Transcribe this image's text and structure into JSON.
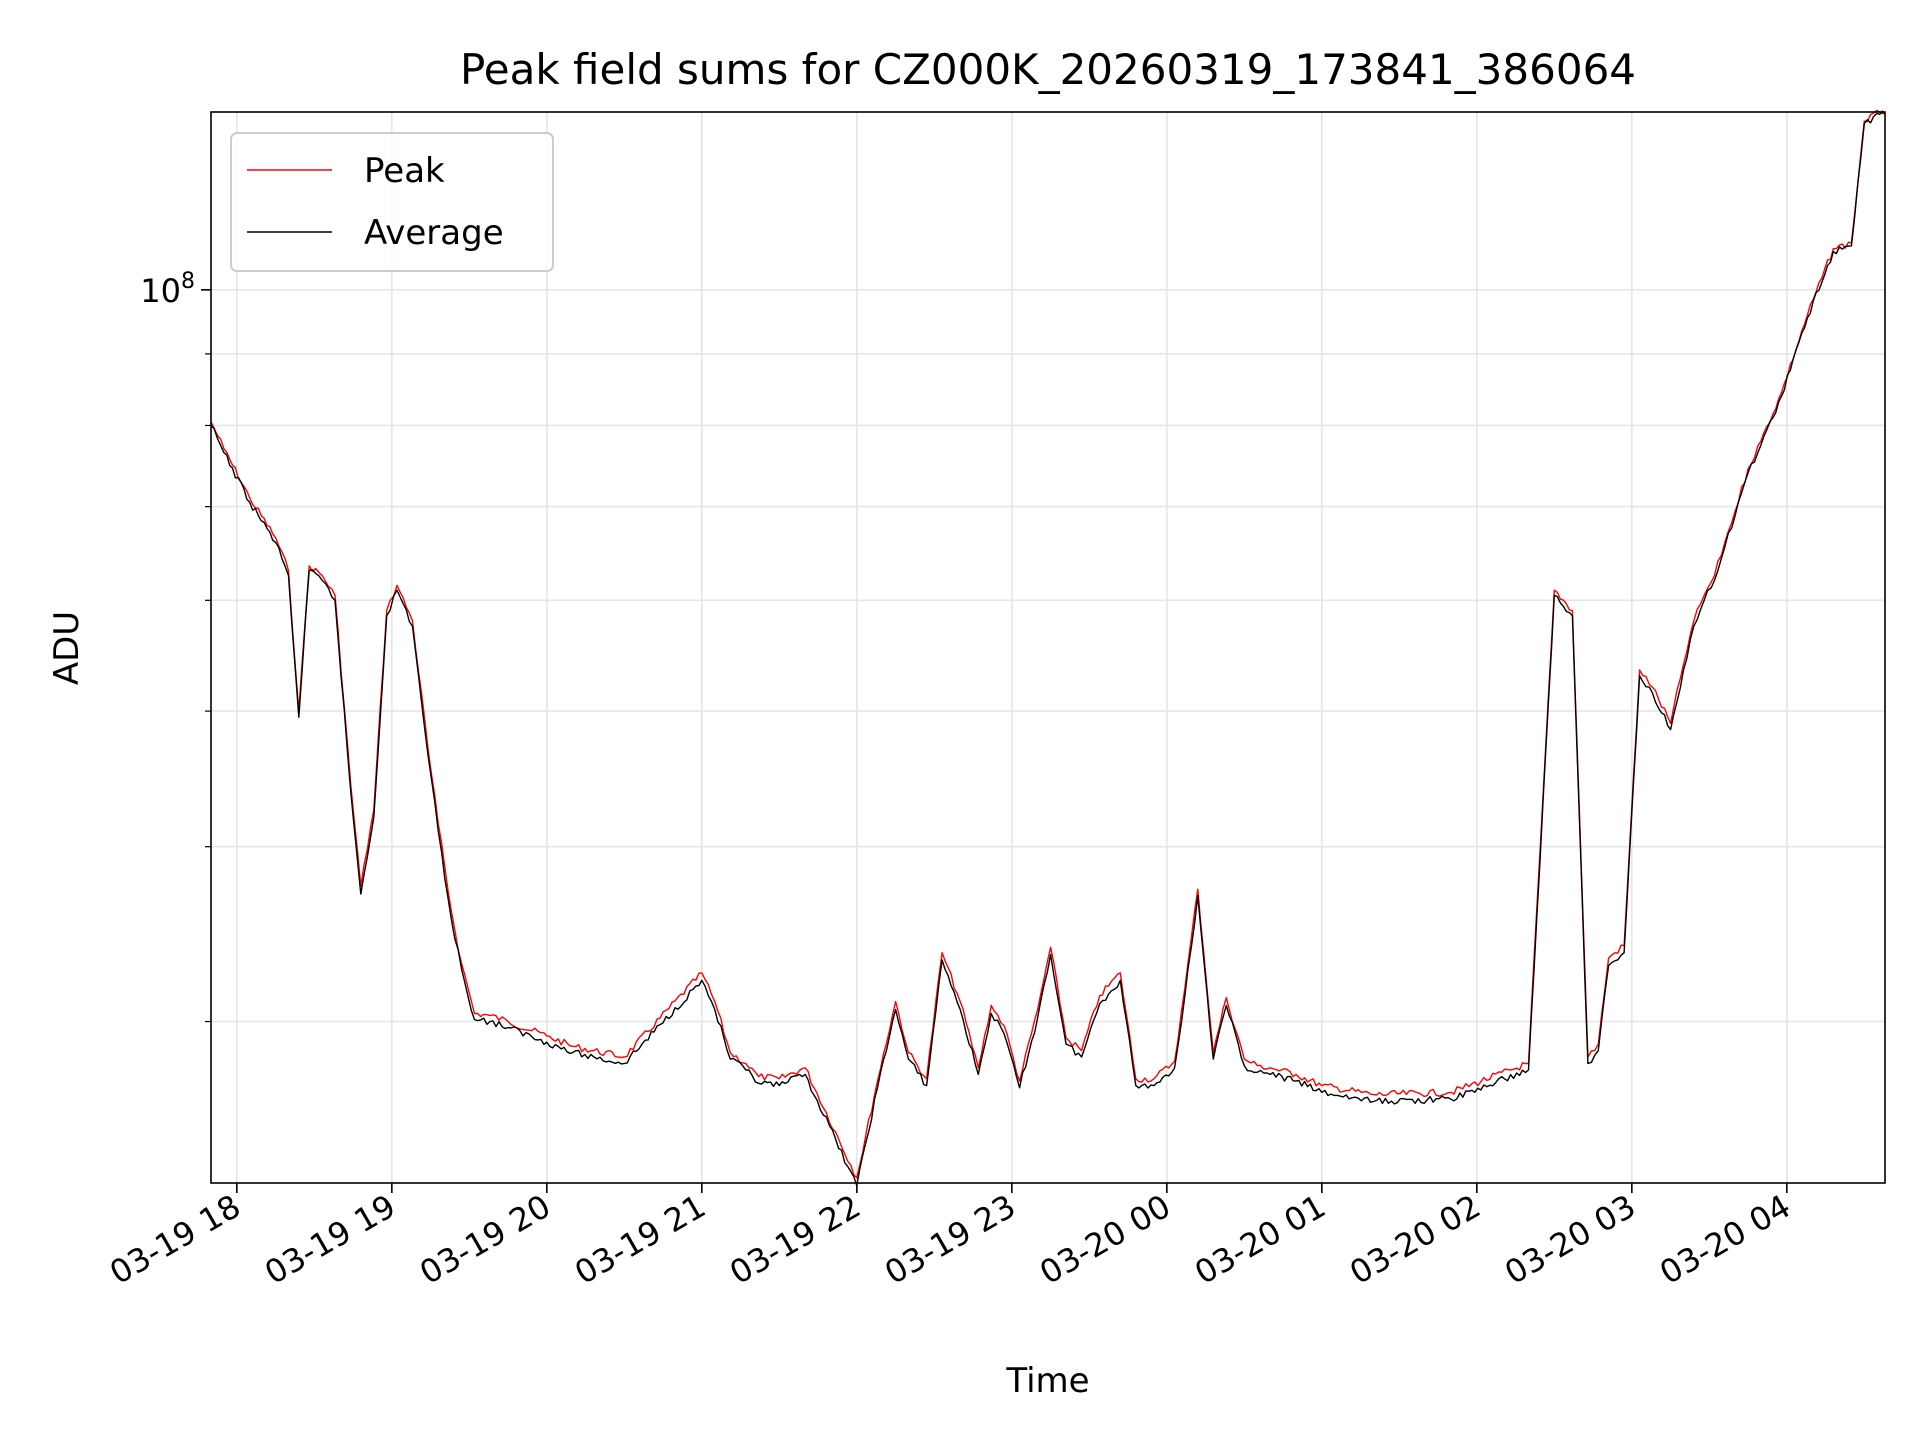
{
  "chart_data": {
    "type": "line",
    "title": "Peak field sums for CZ000K_20260319_173841_386064",
    "xlabel": "Time",
    "ylabel": "ADU",
    "yscale": "log",
    "ylim": [
      23000000,
      134000000
    ],
    "xlim": [
      "2026-03-19 17:50",
      "2026-03-20 04:38"
    ],
    "grid": true,
    "legend_position": "top-left",
    "x_ticks": [
      "03-19 18",
      "03-19 19",
      "03-19 20",
      "03-19 21",
      "03-19 22",
      "03-19 23",
      "03-20 00",
      "03-20 01",
      "03-20 02",
      "03-20 03",
      "03-20 04"
    ],
    "y_tick_major": {
      "base": "10",
      "exponent": "8",
      "value": 100000000
    },
    "y_minor_ticks": [
      30000000,
      40000000,
      50000000,
      60000000,
      70000000,
      80000000,
      90000000
    ],
    "x": [
      "2026-03-19 17:50",
      "2026-03-19 17:55",
      "2026-03-19 18:05",
      "2026-03-19 18:15",
      "2026-03-19 18:20",
      "2026-03-19 18:24",
      "2026-03-19 18:28",
      "2026-03-19 18:33",
      "2026-03-19 18:38",
      "2026-03-19 18:44",
      "2026-03-19 18:48",
      "2026-03-19 18:53",
      "2026-03-19 18:58",
      "2026-03-19 19:02",
      "2026-03-19 19:08",
      "2026-03-19 19:14",
      "2026-03-19 19:18",
      "2026-03-19 19:23",
      "2026-03-19 19:27",
      "2026-03-19 19:32",
      "2026-03-19 19:38",
      "2026-03-19 19:45",
      "2026-03-19 20:00",
      "2026-03-19 20:10",
      "2026-03-19 20:30",
      "2026-03-19 21:00",
      "2026-03-19 21:05",
      "2026-03-19 21:11",
      "2026-03-19 21:17",
      "2026-03-19 21:22",
      "2026-03-19 21:30",
      "2026-03-19 21:40",
      "2026-03-19 22:00",
      "2026-03-19 22:08",
      "2026-03-19 22:15",
      "2026-03-19 22:20",
      "2026-03-19 22:27",
      "2026-03-19 22:33",
      "2026-03-19 22:40",
      "2026-03-19 22:47",
      "2026-03-19 22:52",
      "2026-03-19 22:57",
      "2026-03-19 23:03",
      "2026-03-19 23:10",
      "2026-03-19 23:15",
      "2026-03-19 23:21",
      "2026-03-19 23:27",
      "2026-03-19 23:34",
      "2026-03-19 23:42",
      "2026-03-19 23:48",
      "2026-03-19 23:55",
      "2026-03-20 00:03",
      "2026-03-20 00:07",
      "2026-03-20 00:12",
      "2026-03-20 00:18",
      "2026-03-20 00:23",
      "2026-03-20 00:30",
      "2026-03-20 00:35",
      "2026-03-20 00:40",
      "2026-03-20 00:50",
      "2026-03-20 01:00",
      "2026-03-20 01:20",
      "2026-03-20 01:50",
      "2026-03-20 02:20",
      "2026-03-20 02:30",
      "2026-03-20 02:37",
      "2026-03-20 02:43",
      "2026-03-20 02:47",
      "2026-03-20 02:51",
      "2026-03-20 02:57",
      "2026-03-20 03:03",
      "2026-03-20 03:08",
      "2026-03-20 03:15",
      "2026-03-20 03:20",
      "2026-03-20 03:24",
      "2026-03-20 03:28",
      "2026-03-20 03:32",
      "2026-03-20 03:36",
      "2026-03-20 03:40",
      "2026-03-20 03:45",
      "2026-03-20 03:50",
      "2026-03-20 03:58",
      "2026-03-20 04:08",
      "2026-03-20 04:18",
      "2026-03-20 04:25",
      "2026-03-20 04:30",
      "2026-03-20 04:36",
      "2026-03-20 04:38"
    ],
    "series": [
      {
        "name": "Peak",
        "color": "#ff0000",
        "values": [
          80500000,
          77000000,
          71000000,
          66500000,
          63000000,
          50000000,
          63500000,
          62500000,
          60500000,
          44500000,
          37500000,
          42500000,
          59000000,
          61500000,
          58000000,
          47000000,
          41500000,
          36000000,
          33000000,
          30400000,
          30300000,
          30000000,
          29300000,
          28800000,
          28300000,
          32500000,
          31000000,
          28500000,
          28000000,
          27400000,
          27300000,
          27800000,
          23200000,
          27200000,
          31000000,
          28500000,
          27300000,
          33600000,
          31000000,
          27800000,
          30800000,
          29800000,
          27200000,
          30600000,
          33900000,
          29200000,
          28600000,
          31300000,
          32500000,
          27300000,
          27300000,
          28100000,
          31700000,
          37300000,
          28500000,
          31200000,
          28200000,
          27900000,
          27800000,
          27500000,
          27000000,
          26600000,
          26700000,
          28000000,
          61000000,
          59000000,
          28300000,
          28900000,
          33300000,
          34000000,
          53500000,
          52000000,
          49000000,
          54000000,
          58000000,
          60500000,
          62500000,
          66000000,
          69500000,
          74500000,
          78000000,
          84500000,
          96000000,
          107000000,
          108000000,
          132000000,
          134000000,
          134000000
        ]
      },
      {
        "name": "Average",
        "color": "#000000",
        "values": [
          80000000,
          76500000,
          70500000,
          66000000,
          62500000,
          49500000,
          63000000,
          62000000,
          60000000,
          44000000,
          37000000,
          42000000,
          58500000,
          61000000,
          57500000,
          46500000,
          41000000,
          35500000,
          32700000,
          30100000,
          30000000,
          29700000,
          29000000,
          28500000,
          28000000,
          32100000,
          30600000,
          28200000,
          27700000,
          27100000,
          27000000,
          27500000,
          22900000,
          26900000,
          30600000,
          28200000,
          27000000,
          33200000,
          30600000,
          27500000,
          30400000,
          29400000,
          26900000,
          30200000,
          33500000,
          28900000,
          28300000,
          30900000,
          32100000,
          27000000,
          27000000,
          27800000,
          31300000,
          36900000,
          28200000,
          30800000,
          27900000,
          27600000,
          27500000,
          27200000,
          26700000,
          26300000,
          26400000,
          27700000,
          60500000,
          58500000,
          28000000,
          28600000,
          32900000,
          33600000,
          53000000,
          51500000,
          48500000,
          53500000,
          57500000,
          60000000,
          62000000,
          65500000,
          69000000,
          74000000,
          77500000,
          84000000,
          95500000,
          106500000,
          107500000,
          131500000,
          133500000,
          133500000
        ]
      }
    ]
  }
}
